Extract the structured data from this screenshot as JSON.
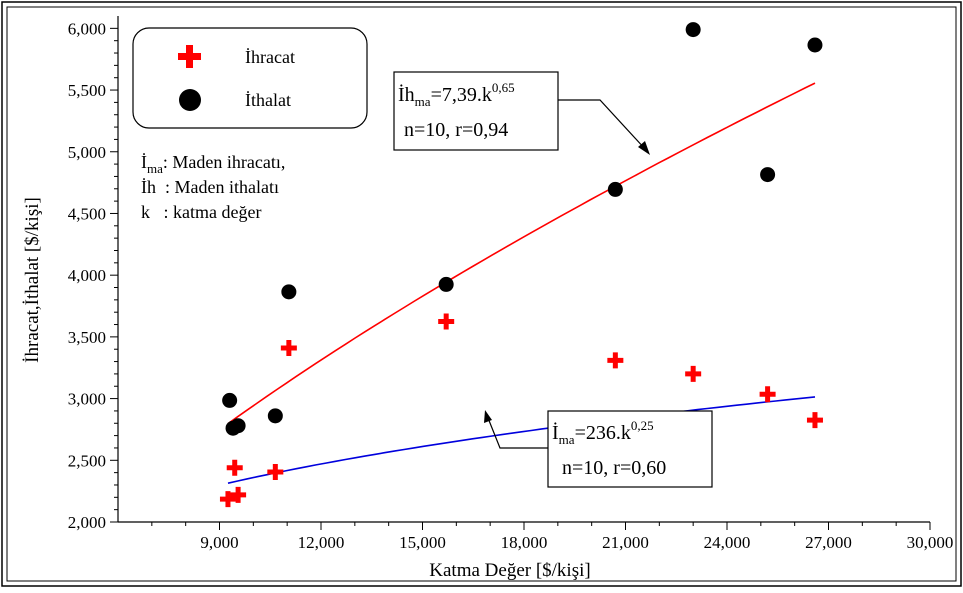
{
  "chart_data": {
    "type": "scatter",
    "xlabel": "Katma Değer [$/kişi]",
    "ylabel": "İhracat,İthalat [$/kişi]",
    "xlim": [
      6000,
      30000
    ],
    "ylim": [
      2000,
      6100
    ],
    "x_ticks": [
      9000,
      12000,
      15000,
      18000,
      21000,
      24000,
      27000,
      30000
    ],
    "x_tick_labels": [
      "9,000",
      "12,000",
      "15,000",
      "18,000",
      "21,000",
      "24,000",
      "27,000",
      "30,000"
    ],
    "y_ticks": [
      2000,
      2500,
      3000,
      3500,
      4000,
      4500,
      5000,
      5500,
      6000
    ],
    "y_tick_labels": [
      "2,000",
      "2,500",
      "3,000",
      "3,500",
      "4,000",
      "4,500",
      "5,000",
      "5,500",
      "6,000"
    ],
    "legend": {
      "position": "top-left",
      "entries": [
        {
          "label": "İhracat",
          "marker": "plus",
          "color": "#ff0000"
        },
        {
          "label": "İthalat",
          "marker": "circle",
          "color": "#000000"
        }
      ]
    },
    "notes": [
      {
        "symbol": "İ",
        "sub": "ma",
        "text": ": Maden ihracatı,"
      },
      {
        "symbol": "İh",
        "sub": "",
        "text": "  : Maden ithalatı"
      },
      {
        "symbol": "k",
        "sub": "",
        "text": "   : katma değer"
      }
    ],
    "series": [
      {
        "name": "İhracat",
        "marker": "plus",
        "color": "#ff0000",
        "points": [
          {
            "x": 9250,
            "y": 2185
          },
          {
            "x": 9450,
            "y": 2440
          },
          {
            "x": 9550,
            "y": 2220
          },
          {
            "x": 10650,
            "y": 2405
          },
          {
            "x": 11050,
            "y": 3410
          },
          {
            "x": 15700,
            "y": 3625
          },
          {
            "x": 20700,
            "y": 3310
          },
          {
            "x": 23000,
            "y": 3200
          },
          {
            "x": 25200,
            "y": 3035
          },
          {
            "x": 26600,
            "y": 2825
          }
        ]
      },
      {
        "name": "İthalat",
        "marker": "circle",
        "color": "#000000",
        "points": [
          {
            "x": 9300,
            "y": 2985
          },
          {
            "x": 9400,
            "y": 2760
          },
          {
            "x": 9550,
            "y": 2780
          },
          {
            "x": 10650,
            "y": 2860
          },
          {
            "x": 11050,
            "y": 3865
          },
          {
            "x": 15700,
            "y": 3925
          },
          {
            "x": 20700,
            "y": 4695
          },
          {
            "x": 23000,
            "y": 5990
          },
          {
            "x": 25200,
            "y": 4815
          },
          {
            "x": 26600,
            "y": 5865
          }
        ]
      }
    ],
    "fits": [
      {
        "color": "#ff0000",
        "coef": 7.39,
        "exp": 0.65,
        "x_range": [
          9250,
          26600
        ],
        "label_main": "İh",
        "label_sub": "ma",
        "label_eq": "=7,39.k",
        "label_sup": "0,65",
        "label_stats": "n=10, r=0,94"
      },
      {
        "color": "#0000dd",
        "coef": 236,
        "exp": 0.25,
        "x_range": [
          9250,
          26600
        ],
        "label_main": "İ",
        "label_sub": "ma",
        "label_eq": "=236.k",
        "label_sup": "0,25",
        "label_stats": "n=10, r=0,60"
      }
    ]
  }
}
